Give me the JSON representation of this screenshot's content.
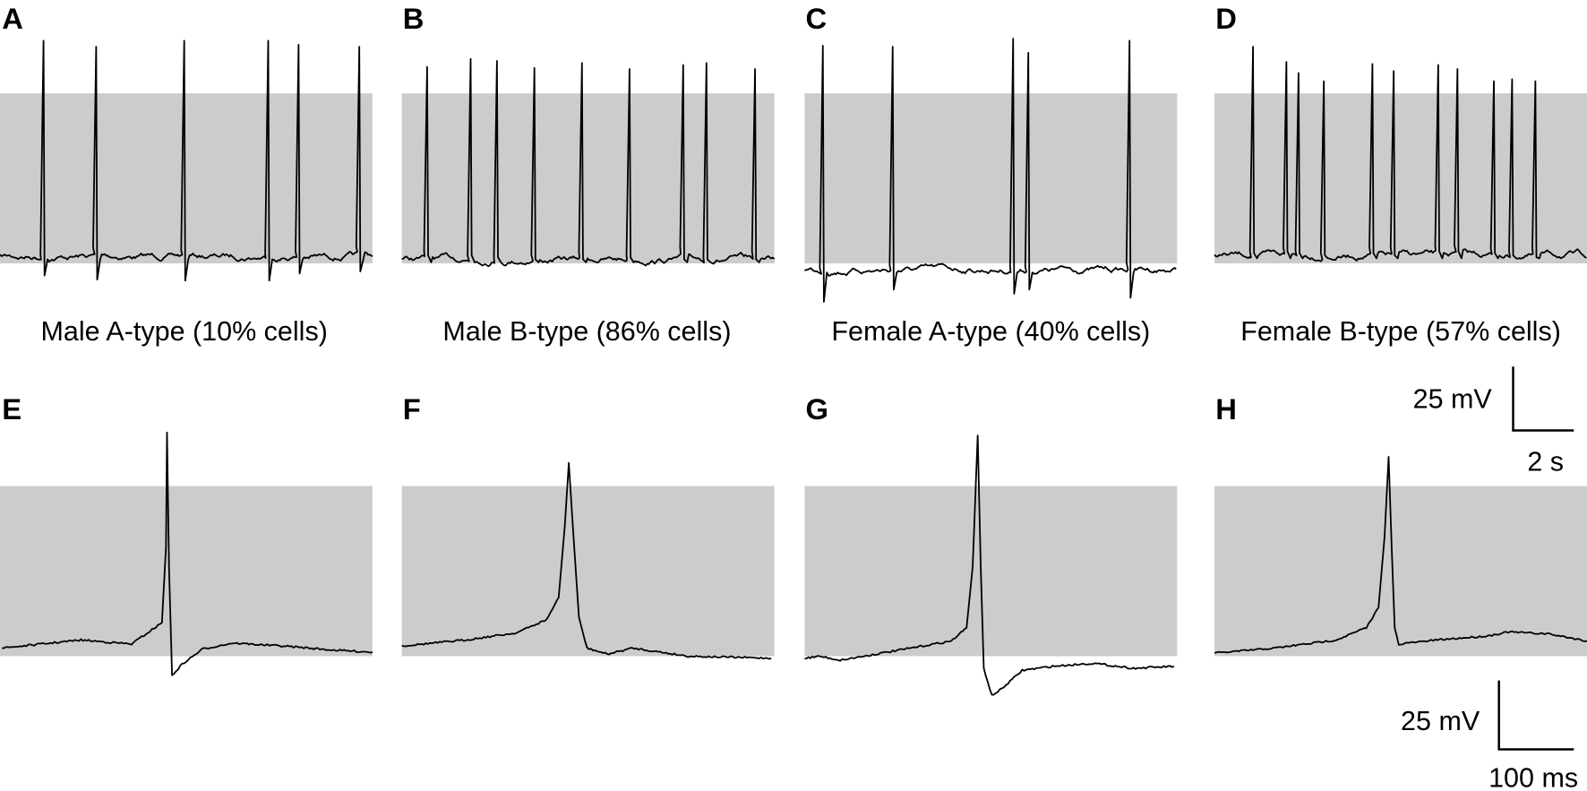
{
  "top_panels": [
    {
      "label": "A",
      "caption": "Male A-type (10% cells)"
    },
    {
      "label": "B",
      "caption": "Male B-type (86% cells)"
    },
    {
      "label": "C",
      "caption": "Female A-type (40% cells)"
    },
    {
      "label": "D",
      "caption": "Female B-type (57% cells)"
    }
  ],
  "bottom_panels": [
    {
      "label": "E"
    },
    {
      "label": "F"
    },
    {
      "label": "G"
    },
    {
      "label": "H"
    }
  ],
  "scale_bars": [
    {
      "voltage": "25 mV",
      "time": "2 s"
    },
    {
      "voltage": "25 mV",
      "time": "100 ms"
    }
  ]
}
